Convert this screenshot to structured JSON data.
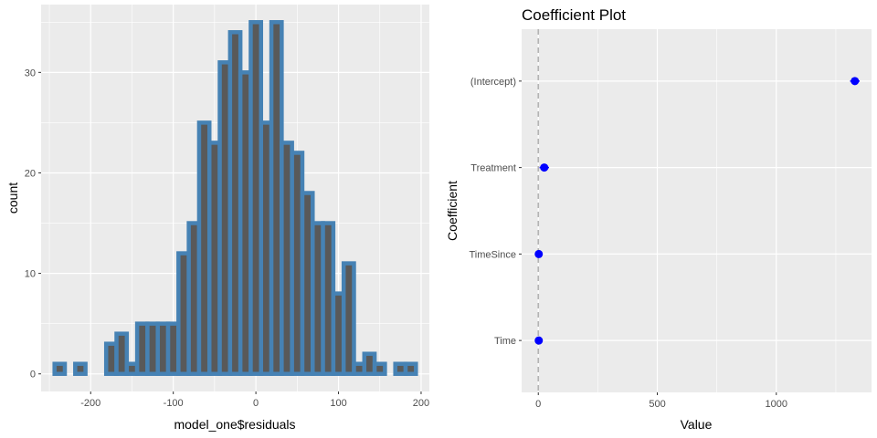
{
  "chart_data": [
    {
      "type": "bar",
      "subtype": "histogram",
      "title": "",
      "xlabel": "model_one$residuals",
      "ylabel": "count",
      "bin_width": 12.5,
      "bins": [
        {
          "x": -237.5,
          "count": 1
        },
        {
          "x": -225,
          "count": 0
        },
        {
          "x": -212.5,
          "count": 1
        },
        {
          "x": -200,
          "count": 0
        },
        {
          "x": -187.5,
          "count": 0
        },
        {
          "x": -175,
          "count": 3
        },
        {
          "x": -162.5,
          "count": 4
        },
        {
          "x": -150,
          "count": 1
        },
        {
          "x": -137.5,
          "count": 5
        },
        {
          "x": -125,
          "count": 5
        },
        {
          "x": -112.5,
          "count": 5
        },
        {
          "x": -100,
          "count": 5
        },
        {
          "x": -87.5,
          "count": 12
        },
        {
          "x": -75,
          "count": 15
        },
        {
          "x": -62.5,
          "count": 25
        },
        {
          "x": -50,
          "count": 23
        },
        {
          "x": -37.5,
          "count": 31
        },
        {
          "x": -25,
          "count": 34
        },
        {
          "x": -12.5,
          "count": 30
        },
        {
          "x": 0,
          "count": 35
        },
        {
          "x": 12.5,
          "count": 25
        },
        {
          "x": 25,
          "count": 35
        },
        {
          "x": 37.5,
          "count": 23
        },
        {
          "x": 50,
          "count": 22
        },
        {
          "x": 62.5,
          "count": 18
        },
        {
          "x": 75,
          "count": 15
        },
        {
          "x": 87.5,
          "count": 15
        },
        {
          "x": 100,
          "count": 8
        },
        {
          "x": 112.5,
          "count": 11
        },
        {
          "x": 125,
          "count": 1
        },
        {
          "x": 137.5,
          "count": 2
        },
        {
          "x": 150,
          "count": 1
        },
        {
          "x": 162.5,
          "count": 0
        },
        {
          "x": 175,
          "count": 1
        },
        {
          "x": 187.5,
          "count": 1
        }
      ],
      "xlim": [
        -260,
        210
      ],
      "ylim": [
        -1.75,
        36.75
      ],
      "x_ticks": [
        -200,
        -100,
        0,
        100,
        200
      ],
      "y_ticks": [
        0,
        10,
        20,
        30
      ],
      "fill_color": "#595959",
      "outline_color": "#4682b4",
      "background_color": "#ebebeb",
      "grid": true
    },
    {
      "type": "scatter",
      "subtype": "coefficient-plot",
      "title": "Coefficient Plot",
      "xlabel": "Value",
      "ylabel": "Coefficient",
      "categories": [
        "(Intercept)",
        "Treatment",
        "TimeSince",
        "Time"
      ],
      "values": [
        1330,
        25,
        2,
        2
      ],
      "ci_low": [
        1310,
        5,
        0,
        0
      ],
      "ci_high": [
        1350,
        45,
        4,
        4
      ],
      "xlim": [
        -70,
        1400
      ],
      "x_ticks": [
        0,
        500,
        1000
      ],
      "reference_line": 0,
      "point_color": "#0000ff",
      "reference_line_color": "#b3b3b3",
      "background_color": "#ebebeb",
      "grid": true
    }
  ]
}
